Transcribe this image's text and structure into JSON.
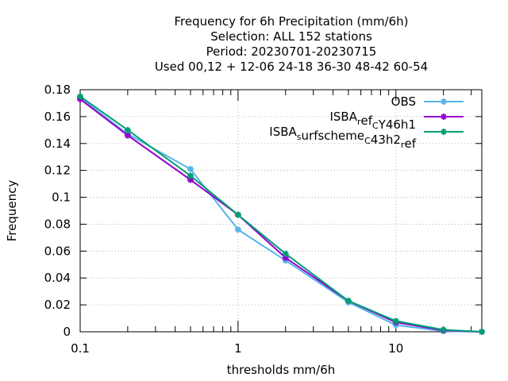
{
  "chart_data": {
    "type": "line",
    "title_lines": [
      "Frequency  for 6h Precipitation (mm/6h)",
      "Selection: ALL    152 stations",
      "Period: 20230701-20230715",
      "Used  00,12  + 12-06 24-18 36-30 48-42 60-54"
    ],
    "xlabel": "thresholds mm/6h",
    "ylabel": "Frequency",
    "x_scale": "log",
    "xlim": [
      0.1,
      35
    ],
    "ylim": [
      0,
      0.18
    ],
    "x_ticks": [
      0.1,
      1,
      10
    ],
    "x_tick_labels": [
      "0.1",
      "1",
      "10"
    ],
    "y_ticks": [
      0,
      0.02,
      0.04,
      0.06,
      0.08,
      0.1,
      0.12,
      0.14,
      0.16,
      0.18
    ],
    "y_tick_labels": [
      "0",
      "0.02",
      "0.04",
      "0.06",
      "0.08",
      "0.1",
      "0.12",
      "0.14",
      "0.16",
      "0.18"
    ],
    "grid": true,
    "legend_position": "top-right",
    "x": [
      0.1,
      0.2,
      0.5,
      1,
      2,
      5,
      10,
      20,
      35
    ],
    "series": [
      {
        "name": "OBS",
        "legend_parts": [
          [
            "ISBA",
            false
          ]
        ],
        "color": "#56b4e9",
        "values": [
          0.174,
          0.147,
          0.121,
          0.076,
          0.053,
          0.022,
          0.005,
          0.0005,
          0.0
        ]
      },
      {
        "name": "ISBA_ref_CY46h1",
        "legend_parts": [
          [
            "ISBA",
            false
          ],
          [
            "r",
            true
          ],
          [
            "ef",
            false
          ],
          [
            "C",
            true
          ],
          [
            "Y46h1",
            false
          ]
        ],
        "color": "#9400d3",
        "values": [
          0.173,
          0.146,
          0.113,
          0.087,
          0.055,
          0.023,
          0.007,
          0.001,
          0.0
        ]
      },
      {
        "name": "ISBA_surfscheme_C43h2_ref",
        "legend_parts": [
          [
            "ISBA",
            false
          ],
          [
            "s",
            true
          ],
          [
            "urfscheme",
            false
          ],
          [
            "C",
            true
          ],
          [
            "43h2",
            false
          ],
          [
            "r",
            true
          ],
          [
            "ef",
            false
          ]
        ],
        "color": "#009e73",
        "values": [
          0.175,
          0.15,
          0.116,
          0.087,
          0.058,
          0.023,
          0.008,
          0.0015,
          0.0
        ]
      }
    ]
  }
}
